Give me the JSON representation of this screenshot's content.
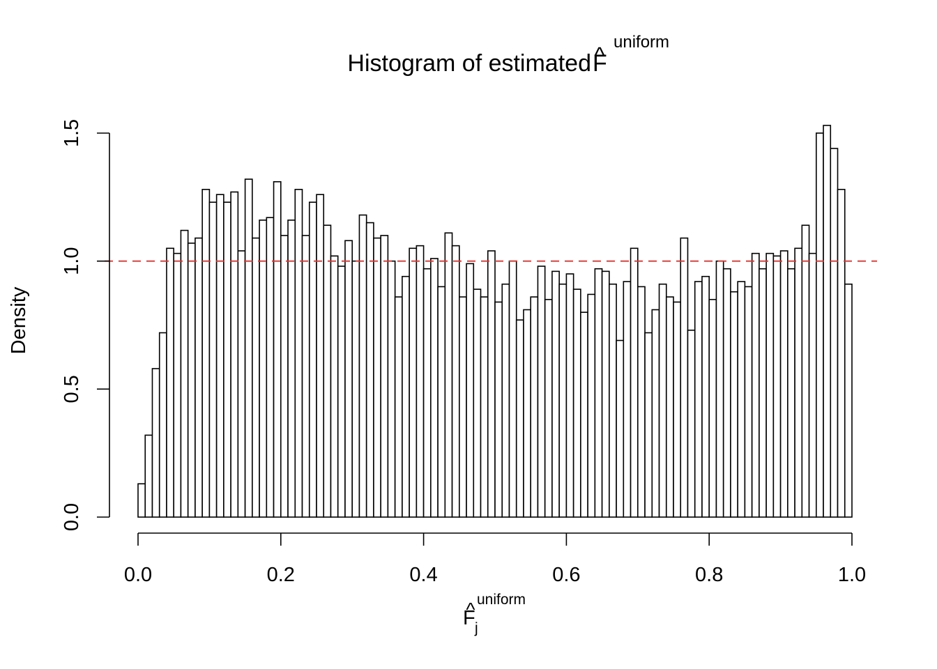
{
  "chart_data": {
    "type": "bar",
    "title": {
      "prefix": "Histogram of estimated ",
      "symbol": "F",
      "hat": "^",
      "superscript": "uniform"
    },
    "xlabel": {
      "symbol": "F",
      "hat": "^",
      "subscript": "j",
      "superscript": "uniform"
    },
    "ylabel": "Density",
    "xlim": [
      0,
      1
    ],
    "ylim": [
      0,
      1.5
    ],
    "bin_width": 0.01,
    "x_ticks": [
      "0.0",
      "0.2",
      "0.4",
      "0.6",
      "0.8",
      "1.0"
    ],
    "y_ticks": [
      "0.0",
      "0.5",
      "1.0",
      "1.5"
    ],
    "reference_line": {
      "y": 1.0,
      "style": "dashed",
      "color": "#e8302a"
    },
    "bar_fill": "#ffffff",
    "bar_stroke": "#000000",
    "values": [
      0.13,
      0.32,
      0.58,
      0.72,
      1.05,
      1.03,
      1.12,
      1.07,
      1.09,
      1.28,
      1.23,
      1.26,
      1.23,
      1.27,
      1.04,
      1.32,
      1.09,
      1.16,
      1.17,
      1.31,
      1.1,
      1.16,
      1.28,
      1.1,
      1.23,
      1.26,
      1.14,
      1.02,
      0.98,
      1.08,
      1.0,
      1.18,
      1.15,
      1.09,
      1.1,
      1.0,
      0.86,
      0.94,
      1.05,
      1.06,
      0.97,
      1.01,
      0.9,
      1.11,
      1.06,
      0.86,
      0.99,
      0.89,
      0.86,
      1.04,
      0.84,
      0.91,
      1.0,
      0.77,
      0.81,
      0.86,
      0.98,
      0.85,
      0.96,
      0.91,
      0.95,
      0.89,
      0.8,
      0.87,
      0.97,
      0.96,
      0.91,
      0.69,
      0.92,
      1.05,
      0.9,
      0.72,
      0.81,
      0.91,
      0.86,
      0.84,
      1.09,
      0.73,
      0.92,
      0.94,
      0.85,
      1.0,
      0.97,
      0.88,
      0.92,
      0.9,
      1.03,
      0.97,
      1.03,
      1.02,
      1.04,
      0.97,
      1.05,
      1.14,
      1.03,
      1.5,
      1.53,
      1.44,
      1.28,
      0.91
    ]
  }
}
